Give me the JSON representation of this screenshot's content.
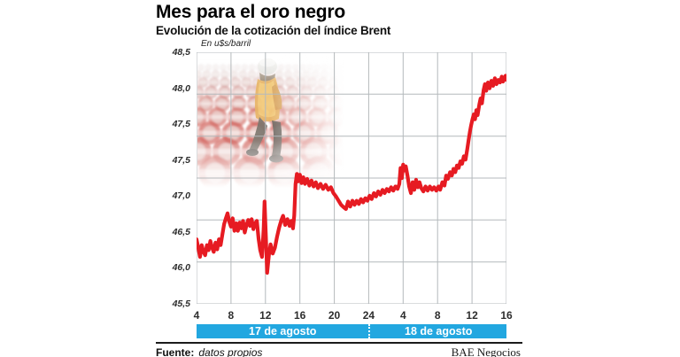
{
  "header": {
    "title": "Mes para el oro negro",
    "subtitle": "Evolución de la cotización del índice Brent"
  },
  "photo": {
    "name": "worker-walking-on-red-oil-barrels"
  },
  "chart_data": {
    "type": "line",
    "title": "Evolución de la cotización del índice Brent",
    "unit_label": "En u$s/barril",
    "ylabel": "u$s/barril",
    "ylim": [
      45.5,
      48.5
    ],
    "xlim_hours": [
      4,
      40
    ],
    "grid": true,
    "y_gridline_values": [
      48.5,
      48.0,
      47.5,
      47.0,
      46.5,
      46.0,
      45.5
    ],
    "y_axis_labels_as_printed": [
      "48,5",
      "48,0",
      "47,5",
      "47,5",
      "47,0",
      "46,5",
      "46,0",
      "45,5"
    ],
    "x_tick_labels": [
      "4",
      "8",
      "12",
      "16",
      "20",
      "24",
      "4",
      "8",
      "12",
      "16"
    ],
    "x_bands": [
      {
        "label": "17 de agosto",
        "from_hour": 4,
        "to_hour": 24
      },
      {
        "label": "18 de agosto",
        "from_hour": 24,
        "to_hour": 40
      }
    ],
    "series": [
      {
        "name": "Brent (u$s/barril)",
        "color": "#e61b22",
        "points": [
          [
            4.0,
            46.27
          ],
          [
            4.2,
            46.17
          ],
          [
            4.4,
            46.06
          ],
          [
            4.6,
            46.2
          ],
          [
            4.8,
            46.12
          ],
          [
            5.0,
            46.08
          ],
          [
            5.2,
            46.2
          ],
          [
            5.4,
            46.14
          ],
          [
            5.6,
            46.25
          ],
          [
            5.8,
            46.17
          ],
          [
            6.0,
            46.12
          ],
          [
            6.2,
            46.23
          ],
          [
            6.4,
            46.15
          ],
          [
            6.6,
            46.27
          ],
          [
            6.8,
            46.2
          ],
          [
            7.0,
            46.33
          ],
          [
            7.2,
            46.45
          ],
          [
            7.4,
            46.52
          ],
          [
            7.6,
            46.58
          ],
          [
            7.8,
            46.48
          ],
          [
            8.0,
            46.42
          ],
          [
            8.2,
            46.52
          ],
          [
            8.4,
            46.37
          ],
          [
            8.6,
            46.46
          ],
          [
            8.8,
            46.37
          ],
          [
            9.0,
            46.47
          ],
          [
            9.2,
            46.4
          ],
          [
            9.4,
            46.49
          ],
          [
            9.6,
            46.35
          ],
          [
            9.8,
            46.44
          ],
          [
            10.0,
            46.5
          ],
          [
            10.2,
            46.43
          ],
          [
            10.4,
            46.51
          ],
          [
            10.6,
            46.39
          ],
          [
            10.8,
            46.46
          ],
          [
            11.0,
            46.49
          ],
          [
            11.2,
            46.28
          ],
          [
            11.4,
            46.14
          ],
          [
            11.6,
            46.06
          ],
          [
            11.8,
            46.4
          ],
          [
            11.9,
            46.72
          ],
          [
            12.05,
            46.3
          ],
          [
            12.2,
            45.87
          ],
          [
            12.4,
            46.08
          ],
          [
            12.6,
            46.21
          ],
          [
            12.85,
            46.1
          ],
          [
            13.1,
            46.17
          ],
          [
            13.35,
            46.3
          ],
          [
            13.6,
            46.41
          ],
          [
            13.85,
            46.5
          ],
          [
            14.05,
            46.55
          ],
          [
            14.3,
            46.44
          ],
          [
            14.55,
            46.51
          ],
          [
            14.8,
            46.43
          ],
          [
            15.0,
            46.49
          ],
          [
            15.2,
            46.4
          ],
          [
            15.35,
            46.55
          ],
          [
            15.5,
            46.93
          ],
          [
            15.65,
            47.05
          ],
          [
            15.8,
            46.96
          ],
          [
            16.0,
            47.04
          ],
          [
            16.2,
            46.94
          ],
          [
            16.4,
            47.01
          ],
          [
            16.6,
            46.93
          ],
          [
            16.85,
            46.99
          ],
          [
            17.1,
            46.91
          ],
          [
            17.35,
            46.97
          ],
          [
            17.6,
            46.9
          ],
          [
            17.85,
            46.95
          ],
          [
            18.1,
            46.88
          ],
          [
            18.4,
            46.93
          ],
          [
            18.7,
            46.87
          ],
          [
            19.0,
            46.92
          ],
          [
            19.3,
            46.86
          ],
          [
            19.6,
            46.89
          ],
          [
            19.9,
            46.82
          ],
          [
            20.2,
            46.78
          ],
          [
            20.5,
            46.73
          ],
          [
            20.8,
            46.68
          ],
          [
            21.1,
            46.65
          ],
          [
            21.35,
            46.63
          ],
          [
            21.6,
            46.72
          ],
          [
            21.85,
            46.66
          ],
          [
            22.1,
            46.73
          ],
          [
            22.35,
            46.68
          ],
          [
            22.6,
            46.73
          ],
          [
            22.85,
            46.69
          ],
          [
            23.1,
            46.75
          ],
          [
            23.35,
            46.71
          ],
          [
            23.6,
            46.76
          ],
          [
            23.85,
            46.73
          ],
          [
            24.1,
            46.79
          ],
          [
            24.35,
            46.75
          ],
          [
            24.6,
            46.82
          ],
          [
            24.85,
            46.78
          ],
          [
            25.1,
            46.84
          ],
          [
            25.35,
            46.8
          ],
          [
            25.6,
            46.86
          ],
          [
            25.85,
            46.82
          ],
          [
            26.1,
            46.87
          ],
          [
            26.35,
            46.84
          ],
          [
            26.6,
            46.89
          ],
          [
            26.85,
            46.85
          ],
          [
            27.1,
            46.9
          ],
          [
            27.35,
            46.87
          ],
          [
            27.55,
            46.93
          ],
          [
            27.7,
            47.12
          ],
          [
            27.85,
            47.0
          ],
          [
            28.0,
            47.16
          ],
          [
            28.15,
            47.09
          ],
          [
            28.3,
            47.14
          ],
          [
            28.5,
            47.03
          ],
          [
            28.7,
            46.9
          ],
          [
            28.9,
            46.82
          ],
          [
            29.1,
            46.95
          ],
          [
            29.3,
            46.86
          ],
          [
            29.5,
            46.98
          ],
          [
            29.7,
            46.89
          ],
          [
            29.9,
            46.95
          ],
          [
            30.1,
            46.88
          ],
          [
            30.35,
            46.84
          ],
          [
            30.6,
            46.9
          ],
          [
            30.85,
            46.85
          ],
          [
            31.1,
            46.9
          ],
          [
            31.35,
            46.86
          ],
          [
            31.6,
            46.89
          ],
          [
            31.85,
            46.85
          ],
          [
            32.1,
            46.9
          ],
          [
            32.3,
            46.86
          ],
          [
            32.55,
            46.95
          ],
          [
            32.8,
            46.91
          ],
          [
            33.0,
            47.03
          ],
          [
            33.2,
            46.99
          ],
          [
            33.45,
            47.07
          ],
          [
            33.65,
            47.03
          ],
          [
            33.85,
            47.11
          ],
          [
            34.05,
            47.07
          ],
          [
            34.25,
            47.15
          ],
          [
            34.45,
            47.12
          ],
          [
            34.65,
            47.2
          ],
          [
            34.85,
            47.17
          ],
          [
            35.05,
            47.26
          ],
          [
            35.25,
            47.22
          ],
          [
            35.45,
            47.35
          ],
          [
            35.6,
            47.45
          ],
          [
            35.75,
            47.55
          ],
          [
            35.9,
            47.63
          ],
          [
            36.05,
            47.7
          ],
          [
            36.2,
            47.76
          ],
          [
            36.35,
            47.7
          ],
          [
            36.5,
            47.81
          ],
          [
            36.65,
            47.75
          ],
          [
            36.85,
            47.88
          ],
          [
            37.0,
            47.95
          ],
          [
            37.15,
            47.89
          ],
          [
            37.35,
            48.05
          ],
          [
            37.5,
            48.12
          ],
          [
            37.65,
            48.04
          ],
          [
            37.85,
            48.14
          ],
          [
            38.05,
            48.07
          ],
          [
            38.25,
            48.16
          ],
          [
            38.45,
            48.1
          ],
          [
            38.65,
            48.19
          ],
          [
            38.85,
            48.12
          ],
          [
            39.05,
            48.17
          ],
          [
            39.25,
            48.14
          ],
          [
            39.45,
            48.21
          ],
          [
            39.6,
            48.15
          ],
          [
            39.75,
            48.19
          ],
          [
            39.9,
            48.22
          ],
          [
            40.0,
            48.17
          ]
        ]
      }
    ],
    "legend": []
  },
  "footer": {
    "source_label": "Fuente:",
    "source_value": "datos propios",
    "credit": "BAE Negocios"
  },
  "colors": {
    "line": "#e61b22",
    "band": "#22a7e0",
    "grid": "#b4b9bc",
    "rule": "#1b1b1b"
  }
}
